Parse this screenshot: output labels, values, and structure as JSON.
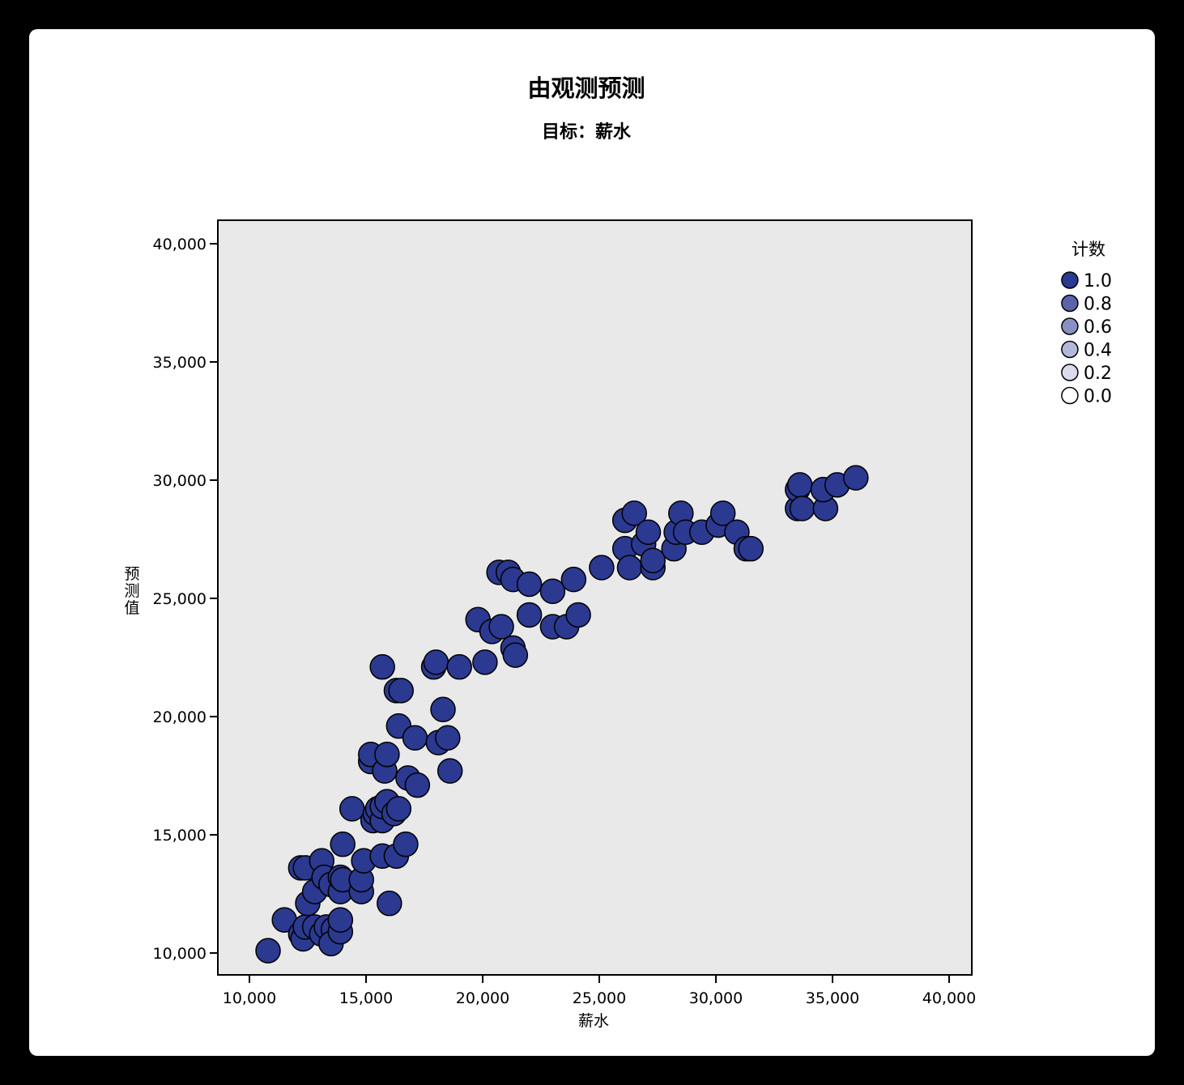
{
  "chart_data": {
    "type": "scatter",
    "title": "由观测预测",
    "subtitle": "目标：薪水",
    "xlabel": "薪水",
    "ylabel": "预测值",
    "xlim": [
      10000,
      40000
    ],
    "ylim": [
      10000,
      40000
    ],
    "xticks": [
      10000,
      15000,
      20000,
      25000,
      30000,
      35000,
      40000
    ],
    "yticks": [
      10000,
      15000,
      20000,
      25000,
      30000,
      35000,
      40000
    ],
    "xtick_labels": [
      "10,000",
      "15,000",
      "20,000",
      "25,000",
      "30,000",
      "35,000",
      "40,000"
    ],
    "ytick_labels": [
      "10,000",
      "15,000",
      "20,000",
      "25,000",
      "30,000",
      "35,000",
      "40,000"
    ],
    "grid": false,
    "plot_background": "#e9e9e9",
    "marker_color": "#2b3990",
    "legend": {
      "title": "计数",
      "placement": "right",
      "entries": [
        {
          "label": "1.0",
          "color": "#2b3990"
        },
        {
          "label": "0.8",
          "color": "#5a64aa"
        },
        {
          "label": "0.6",
          "color": "#8890c2"
        },
        {
          "label": "0.4",
          "color": "#b3b8da"
        },
        {
          "label": "0.2",
          "color": "#dadcee"
        },
        {
          "label": "0.0",
          "color": "#ffffff"
        }
      ]
    },
    "series": [
      {
        "points": [
          [
            10800,
            10100
          ],
          [
            11500,
            11400
          ],
          [
            12200,
            10800
          ],
          [
            12300,
            10600
          ],
          [
            12400,
            11100
          ],
          [
            12800,
            11100
          ],
          [
            13100,
            10800
          ],
          [
            13300,
            11100
          ],
          [
            13600,
            11000
          ],
          [
            13500,
            10400
          ],
          [
            13900,
            10900
          ],
          [
            13900,
            11400
          ],
          [
            12200,
            13600
          ],
          [
            12400,
            13600
          ],
          [
            12500,
            12100
          ],
          [
            12800,
            12600
          ],
          [
            13100,
            13900
          ],
          [
            13200,
            13200
          ],
          [
            13500,
            12900
          ],
          [
            13900,
            12600
          ],
          [
            13900,
            13200
          ],
          [
            14000,
            13100
          ],
          [
            14000,
            14600
          ],
          [
            14400,
            16100
          ],
          [
            14800,
            12600
          ],
          [
            14800,
            13100
          ],
          [
            14900,
            13900
          ],
          [
            15200,
            18100
          ],
          [
            15200,
            18400
          ],
          [
            15300,
            15600
          ],
          [
            15400,
            15900
          ],
          [
            15500,
            16100
          ],
          [
            15700,
            14100
          ],
          [
            15700,
            15600
          ],
          [
            15700,
            16200
          ],
          [
            15700,
            22100
          ],
          [
            15800,
            17700
          ],
          [
            15900,
            18400
          ],
          [
            15900,
            16400
          ],
          [
            16000,
            12100
          ],
          [
            16200,
            15900
          ],
          [
            16300,
            14100
          ],
          [
            16300,
            21100
          ],
          [
            16400,
            16100
          ],
          [
            16400,
            19600
          ],
          [
            16500,
            21100
          ],
          [
            16700,
            14600
          ],
          [
            16800,
            17400
          ],
          [
            17100,
            19100
          ],
          [
            17200,
            17100
          ],
          [
            17900,
            22100
          ],
          [
            18000,
            22300
          ],
          [
            18100,
            18900
          ],
          [
            18300,
            20300
          ],
          [
            18500,
            19100
          ],
          [
            18600,
            17700
          ],
          [
            19000,
            22100
          ],
          [
            19800,
            24100
          ],
          [
            20100,
            22300
          ],
          [
            20400,
            23600
          ],
          [
            20800,
            23800
          ],
          [
            20700,
            26100
          ],
          [
            21100,
            26100
          ],
          [
            21300,
            25800
          ],
          [
            21300,
            22900
          ],
          [
            21400,
            22600
          ],
          [
            22000,
            25600
          ],
          [
            22000,
            24300
          ],
          [
            23000,
            25300
          ],
          [
            23000,
            23800
          ],
          [
            23600,
            23800
          ],
          [
            23900,
            25800
          ],
          [
            24100,
            24300
          ],
          [
            25100,
            26300
          ],
          [
            26100,
            27100
          ],
          [
            26100,
            28300
          ],
          [
            26300,
            26300
          ],
          [
            26500,
            28600
          ],
          [
            26900,
            27300
          ],
          [
            27100,
            27800
          ],
          [
            27300,
            26300
          ],
          [
            27300,
            26600
          ],
          [
            28200,
            27100
          ],
          [
            28300,
            27800
          ],
          [
            28500,
            28600
          ],
          [
            28700,
            27800
          ],
          [
            29400,
            27800
          ],
          [
            30100,
            28100
          ],
          [
            30300,
            28600
          ],
          [
            30900,
            27800
          ],
          [
            31300,
            27100
          ],
          [
            31500,
            27100
          ],
          [
            33500,
            28800
          ],
          [
            33500,
            29600
          ],
          [
            33600,
            29800
          ],
          [
            33700,
            28800
          ],
          [
            34700,
            28800
          ],
          [
            34600,
            29600
          ],
          [
            35200,
            29800
          ],
          [
            36000,
            30100
          ]
        ]
      }
    ]
  }
}
